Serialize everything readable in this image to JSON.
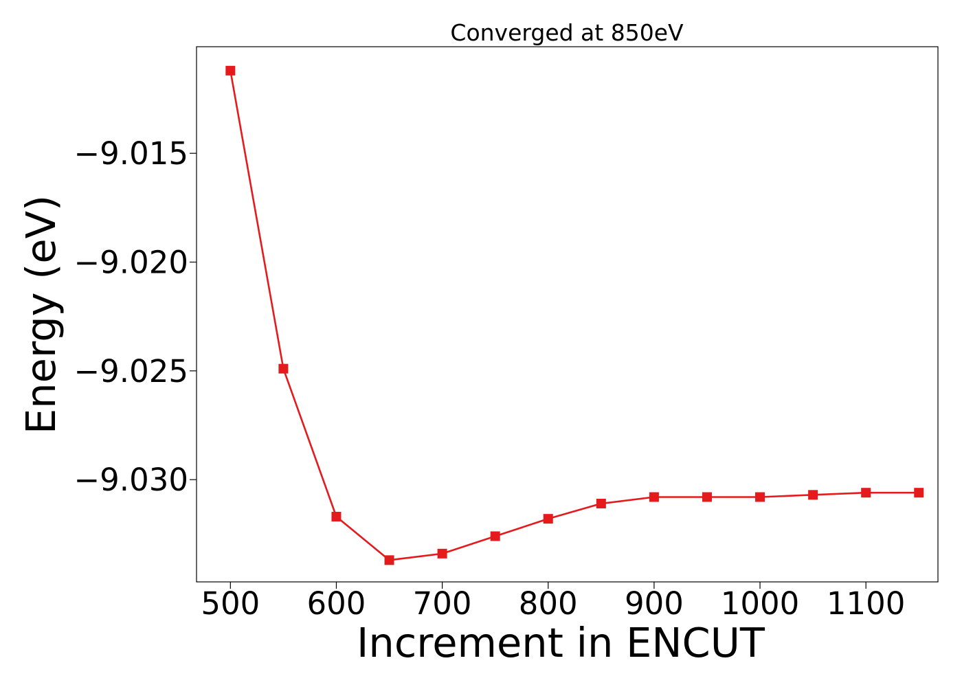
{
  "chart_data": {
    "type": "line",
    "title": "Converged at 850eV",
    "xlabel": "Increment in ENCUT",
    "ylabel": "Energy (eV)",
    "xlim": [
      468,
      1168
    ],
    "ylim": [
      -9.0347,
      -9.0101
    ],
    "x_ticks": [
      500,
      600,
      700,
      800,
      900,
      1000,
      1100
    ],
    "x_tick_labels": [
      "500",
      "600",
      "700",
      "800",
      "900",
      "1000",
      "1100"
    ],
    "y_ticks": [
      -9.015,
      -9.02,
      -9.025,
      -9.03
    ],
    "y_tick_labels": [
      "−9.015",
      "−9.020",
      "−9.025",
      "−9.030"
    ],
    "grid": false,
    "legend": "none",
    "series": [
      {
        "color": "#e41a1c",
        "marker": "square",
        "x": [
          500,
          550,
          600,
          650,
          700,
          750,
          800,
          850,
          900,
          950,
          1000,
          1050,
          1100,
          1150
        ],
        "y": [
          -9.0112,
          -9.0249,
          -9.0317,
          -9.0337,
          -9.0334,
          -9.0326,
          -9.0318,
          -9.0311,
          -9.0308,
          -9.0308,
          -9.0308,
          -9.0307,
          -9.0306,
          -9.0306
        ]
      }
    ]
  }
}
